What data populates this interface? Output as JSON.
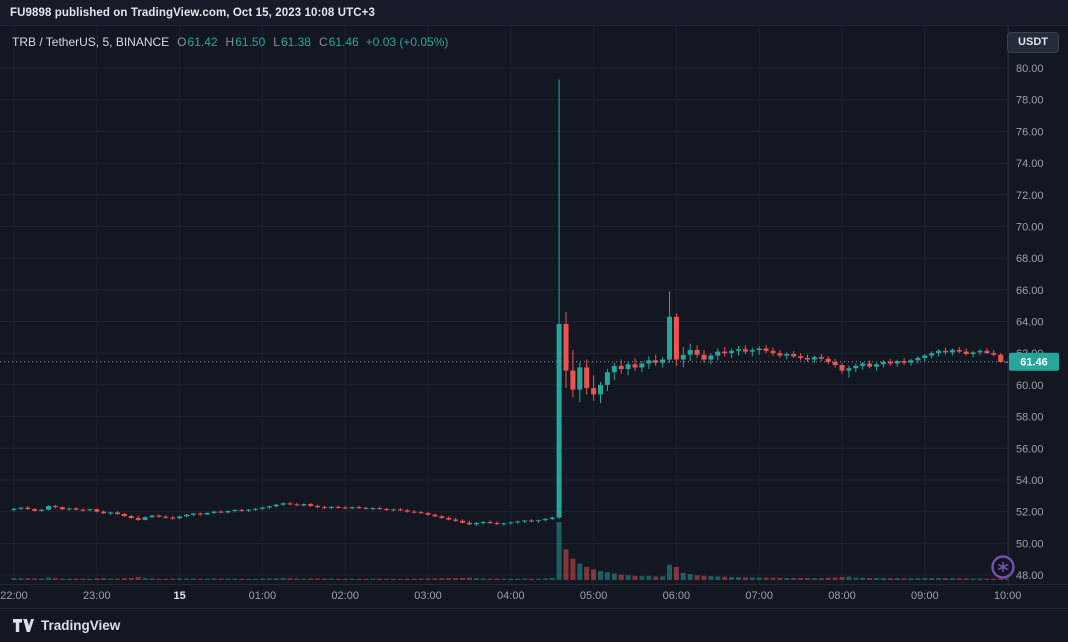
{
  "header": {
    "published_line": "FU9898 published on TradingView.com, Oct 15, 2023 10:08 UTC+3"
  },
  "legend": {
    "title": "TRB / TetherUS, 5, BINANCE",
    "ohlc": [
      {
        "k": "O",
        "v": "61.42"
      },
      {
        "k": "H",
        "v": "61.50"
      },
      {
        "k": "L",
        "v": "61.38"
      },
      {
        "k": "C",
        "v": "61.46"
      }
    ],
    "change": "+0.03 (+0.05%)"
  },
  "axis_button": {
    "label": "USDT"
  },
  "footer": {
    "brand": "TradingView"
  },
  "colors": {
    "bg": "#131722",
    "up": "#26a69a",
    "down": "#ef5350",
    "grid": "#1d2231",
    "axis_text": "#9aa0ac",
    "last_price_line": "#9598a1",
    "last_price_badge": "#26a69a",
    "watermark_purple": "#7e57c2"
  },
  "chart_data": {
    "type": "candlestick",
    "symbol": "TRB / TetherUS",
    "exchange": "BINANCE",
    "interval_minutes": 5,
    "last_price": 61.46,
    "price_range": [
      48,
      80
    ],
    "price_axis_ticks": [
      "80.00",
      "78.00",
      "76.00",
      "74.00",
      "72.00",
      "70.00",
      "68.00",
      "66.00",
      "64.00",
      "62.00",
      "60.00",
      "58.00",
      "56.00",
      "54.00",
      "52.00",
      "50.00",
      "48.00"
    ],
    "time_ticks": [
      {
        "index": 0,
        "label": "22:00"
      },
      {
        "index": 12,
        "label": "23:00"
      },
      {
        "index": 24,
        "label": "15",
        "strong": true
      },
      {
        "index": 36,
        "label": "01:00"
      },
      {
        "index": 48,
        "label": "02:00"
      },
      {
        "index": 60,
        "label": "03:00"
      },
      {
        "index": 72,
        "label": "04:00"
      },
      {
        "index": 84,
        "label": "05:00"
      },
      {
        "index": 96,
        "label": "06:00"
      },
      {
        "index": 108,
        "label": "07:00"
      },
      {
        "index": 120,
        "label": "08:00"
      },
      {
        "index": 132,
        "label": "09:00"
      },
      {
        "index": 144,
        "label": "10:00"
      }
    ],
    "candles": [
      [
        52.1,
        52.22,
        52.01,
        52.18,
        310
      ],
      [
        52.18,
        52.3,
        52.1,
        52.25,
        280
      ],
      [
        52.25,
        52.34,
        52.12,
        52.16,
        300
      ],
      [
        52.16,
        52.22,
        52.0,
        52.05,
        260
      ],
      [
        52.05,
        52.18,
        51.98,
        52.12,
        240
      ],
      [
        52.12,
        52.4,
        52.08,
        52.35,
        420
      ],
      [
        52.35,
        52.42,
        52.2,
        52.28,
        310
      ],
      [
        52.28,
        52.32,
        52.1,
        52.15,
        220
      ],
      [
        52.15,
        52.25,
        52.05,
        52.2,
        200
      ],
      [
        52.2,
        52.28,
        52.08,
        52.12,
        210
      ],
      [
        52.12,
        52.2,
        52.0,
        52.08,
        190
      ],
      [
        52.08,
        52.18,
        52.02,
        52.15,
        180
      ],
      [
        52.15,
        52.2,
        51.95,
        52.0,
        260
      ],
      [
        52.0,
        52.08,
        51.85,
        51.9,
        300
      ],
      [
        51.9,
        52.0,
        51.78,
        51.95,
        240
      ],
      [
        51.95,
        52.02,
        51.8,
        51.85,
        220
      ],
      [
        51.85,
        51.92,
        51.68,
        51.72,
        310
      ],
      [
        51.72,
        51.8,
        51.55,
        51.6,
        340
      ],
      [
        51.6,
        51.75,
        51.42,
        51.48,
        520
      ],
      [
        51.48,
        51.7,
        51.45,
        51.65,
        300
      ],
      [
        51.65,
        51.8,
        51.58,
        51.75,
        260
      ],
      [
        51.75,
        51.85,
        51.62,
        51.68,
        210
      ],
      [
        51.68,
        51.78,
        51.55,
        51.62,
        200
      ],
      [
        51.62,
        51.72,
        51.5,
        51.58,
        190
      ],
      [
        51.58,
        51.75,
        51.52,
        51.7,
        250
      ],
      [
        51.7,
        51.85,
        51.65,
        51.8,
        240
      ],
      [
        51.8,
        51.92,
        51.72,
        51.88,
        230
      ],
      [
        51.88,
        51.95,
        51.75,
        51.82,
        200
      ],
      [
        51.82,
        51.95,
        51.78,
        51.92,
        210
      ],
      [
        51.92,
        52.05,
        51.85,
        52.0,
        260
      ],
      [
        52.0,
        52.1,
        51.9,
        51.95,
        220
      ],
      [
        51.95,
        52.08,
        51.88,
        52.04,
        210
      ],
      [
        52.04,
        52.15,
        51.95,
        52.1,
        230
      ],
      [
        52.1,
        52.18,
        52.0,
        52.06,
        190
      ],
      [
        52.06,
        52.16,
        51.98,
        52.12,
        180
      ],
      [
        52.12,
        52.22,
        52.05,
        52.18,
        200
      ],
      [
        52.18,
        52.3,
        52.1,
        52.26,
        240
      ],
      [
        52.26,
        52.38,
        52.18,
        52.34,
        260
      ],
      [
        52.34,
        52.48,
        52.26,
        52.44,
        300
      ],
      [
        52.44,
        52.58,
        52.36,
        52.52,
        320
      ],
      [
        52.52,
        52.62,
        52.4,
        52.46,
        280
      ],
      [
        52.46,
        52.56,
        52.35,
        52.4,
        230
      ],
      [
        52.4,
        52.52,
        52.32,
        52.48,
        220
      ],
      [
        52.48,
        52.55,
        52.3,
        52.36,
        240
      ],
      [
        52.36,
        52.44,
        52.22,
        52.28,
        250
      ],
      [
        52.28,
        52.38,
        52.18,
        52.24,
        210
      ],
      [
        52.24,
        52.34,
        52.15,
        52.3,
        200
      ],
      [
        52.3,
        52.38,
        52.2,
        52.26,
        190
      ],
      [
        52.26,
        52.34,
        52.16,
        52.22,
        200
      ],
      [
        52.22,
        52.32,
        52.14,
        52.28,
        190
      ],
      [
        52.28,
        52.36,
        52.18,
        52.24,
        180
      ],
      [
        52.24,
        52.3,
        52.12,
        52.18,
        190
      ],
      [
        52.18,
        52.28,
        52.1,
        52.22,
        180
      ],
      [
        52.22,
        52.3,
        52.12,
        52.16,
        170
      ],
      [
        52.16,
        52.24,
        52.05,
        52.1,
        200
      ],
      [
        52.1,
        52.2,
        52.02,
        52.14,
        180
      ],
      [
        52.14,
        52.22,
        52.04,
        52.08,
        170
      ],
      [
        52.08,
        52.15,
        51.95,
        52.0,
        220
      ],
      [
        52.0,
        52.1,
        51.9,
        51.96,
        210
      ],
      [
        51.96,
        52.05,
        51.85,
        51.9,
        230
      ],
      [
        51.9,
        51.98,
        51.75,
        51.8,
        260
      ],
      [
        51.8,
        51.88,
        51.65,
        51.7,
        280
      ],
      [
        51.7,
        51.78,
        51.55,
        51.6,
        300
      ],
      [
        51.6,
        51.7,
        51.45,
        51.5,
        320
      ],
      [
        51.5,
        51.6,
        51.35,
        51.42,
        340
      ],
      [
        51.42,
        51.52,
        51.25,
        51.3,
        360
      ],
      [
        51.3,
        51.42,
        51.15,
        51.2,
        380
      ],
      [
        51.2,
        51.35,
        51.08,
        51.28,
        320
      ],
      [
        51.28,
        51.4,
        51.18,
        51.35,
        260
      ],
      [
        51.35,
        51.45,
        51.22,
        51.28,
        230
      ],
      [
        51.28,
        51.38,
        51.15,
        51.22,
        240
      ],
      [
        51.22,
        51.32,
        51.1,
        51.26,
        220
      ],
      [
        51.26,
        51.38,
        51.18,
        51.32,
        230
      ],
      [
        51.32,
        51.42,
        51.22,
        51.38,
        220
      ],
      [
        51.38,
        51.48,
        51.28,
        51.44,
        240
      ],
      [
        51.44,
        51.52,
        51.32,
        51.4,
        210
      ],
      [
        51.4,
        51.5,
        51.3,
        51.46,
        220
      ],
      [
        51.46,
        51.58,
        51.38,
        51.54,
        260
      ],
      [
        51.54,
        51.68,
        51.46,
        51.62,
        320
      ],
      [
        51.62,
        79.27,
        51.55,
        63.85,
        9800
      ],
      [
        63.85,
        64.6,
        59.8,
        60.9,
        5200
      ],
      [
        60.9,
        62.2,
        59.2,
        59.7,
        3600
      ],
      [
        59.7,
        61.4,
        58.9,
        61.1,
        2800
      ],
      [
        61.1,
        61.6,
        59.4,
        59.8,
        2200
      ],
      [
        59.8,
        60.6,
        59.0,
        59.4,
        1800
      ],
      [
        59.4,
        60.2,
        58.85,
        60.0,
        1500
      ],
      [
        60.0,
        61.0,
        59.6,
        60.8,
        1300
      ],
      [
        60.8,
        61.4,
        60.3,
        61.2,
        1100
      ],
      [
        61.2,
        61.6,
        60.7,
        61.0,
        900
      ],
      [
        61.0,
        61.45,
        60.6,
        61.3,
        800
      ],
      [
        61.3,
        61.7,
        60.9,
        61.1,
        700
      ],
      [
        61.1,
        61.5,
        60.8,
        61.35,
        650
      ],
      [
        61.35,
        61.8,
        61.0,
        61.55,
        700
      ],
      [
        61.55,
        61.9,
        61.2,
        61.4,
        600
      ],
      [
        61.4,
        61.75,
        61.1,
        61.6,
        620
      ],
      [
        61.6,
        65.9,
        61.4,
        64.3,
        2600
      ],
      [
        64.3,
        64.5,
        61.2,
        61.6,
        2200
      ],
      [
        61.6,
        62.4,
        61.1,
        61.9,
        1200
      ],
      [
        61.9,
        62.6,
        61.5,
        62.2,
        1000
      ],
      [
        62.2,
        62.5,
        61.7,
        61.9,
        800
      ],
      [
        61.9,
        62.2,
        61.4,
        61.6,
        700
      ],
      [
        61.6,
        62.0,
        61.3,
        61.85,
        650
      ],
      [
        61.85,
        62.3,
        61.55,
        62.1,
        600
      ],
      [
        62.1,
        62.4,
        61.8,
        62.0,
        550
      ],
      [
        62.0,
        62.3,
        61.7,
        62.15,
        500
      ],
      [
        62.15,
        62.45,
        61.85,
        62.25,
        480
      ],
      [
        62.25,
        62.5,
        61.95,
        62.1,
        450
      ],
      [
        62.1,
        62.35,
        61.8,
        62.2,
        430
      ],
      [
        62.2,
        62.45,
        61.9,
        62.3,
        420
      ],
      [
        62.3,
        62.5,
        62.0,
        62.15,
        400
      ],
      [
        62.15,
        62.35,
        61.85,
        62.0,
        380
      ],
      [
        62.0,
        62.2,
        61.7,
        61.85,
        360
      ],
      [
        61.85,
        62.05,
        61.6,
        61.95,
        340
      ],
      [
        61.95,
        62.15,
        61.7,
        61.8,
        330
      ],
      [
        61.8,
        62.0,
        61.55,
        61.7,
        350
      ],
      [
        61.7,
        61.9,
        61.45,
        61.6,
        340
      ],
      [
        61.6,
        61.85,
        61.4,
        61.75,
        320
      ],
      [
        61.75,
        61.95,
        61.5,
        61.65,
        310
      ],
      [
        61.65,
        61.8,
        61.3,
        61.45,
        380
      ],
      [
        61.45,
        61.65,
        61.1,
        61.25,
        420
      ],
      [
        61.25,
        61.4,
        60.7,
        60.9,
        520
      ],
      [
        60.9,
        61.2,
        60.45,
        61.05,
        560
      ],
      [
        61.05,
        61.35,
        60.8,
        61.2,
        420
      ],
      [
        61.2,
        61.45,
        60.95,
        61.35,
        380
      ],
      [
        61.35,
        61.55,
        61.05,
        61.15,
        340
      ],
      [
        61.15,
        61.4,
        60.9,
        61.3,
        330
      ],
      [
        61.3,
        61.55,
        61.1,
        61.45,
        320
      ],
      [
        61.45,
        61.65,
        61.2,
        61.35,
        300
      ],
      [
        61.35,
        61.6,
        61.15,
        61.5,
        290
      ],
      [
        61.5,
        61.7,
        61.25,
        61.4,
        280
      ],
      [
        61.4,
        61.65,
        61.2,
        61.55,
        270
      ],
      [
        61.55,
        61.8,
        61.35,
        61.7,
        290
      ],
      [
        61.7,
        61.95,
        61.5,
        61.85,
        300
      ],
      [
        61.85,
        62.1,
        61.65,
        62.0,
        320
      ],
      [
        62.0,
        62.25,
        61.8,
        62.15,
        330
      ],
      [
        62.15,
        62.35,
        61.9,
        62.05,
        300
      ],
      [
        62.05,
        62.3,
        61.85,
        62.2,
        290
      ],
      [
        62.2,
        62.4,
        62.0,
        62.1,
        270
      ],
      [
        62.1,
        62.3,
        61.85,
        61.95,
        260
      ],
      [
        61.95,
        62.15,
        61.75,
        62.05,
        250
      ],
      [
        62.05,
        62.25,
        61.9,
        62.15,
        240
      ],
      [
        62.15,
        62.3,
        61.95,
        62.0,
        230
      ],
      [
        62.0,
        62.2,
        61.8,
        61.9,
        240
      ],
      [
        61.9,
        62.0,
        61.4,
        61.45,
        260
      ],
      [
        61.42,
        61.5,
        61.38,
        61.46,
        180
      ]
    ]
  }
}
